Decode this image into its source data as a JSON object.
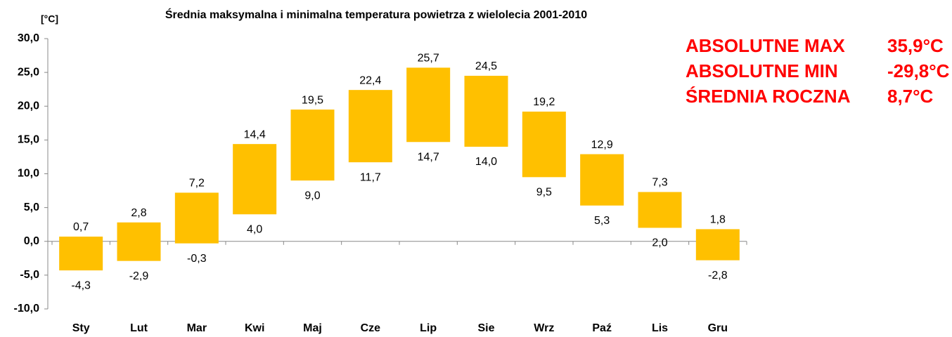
{
  "chart_data": {
    "type": "range-bar",
    "title": "Średnia maksymalna i minimalna temperatura powietrza z wielolecia 2001-2010",
    "y_label": "[°C]",
    "categories": [
      "Sty",
      "Lut",
      "Mar",
      "Kwi",
      "Maj",
      "Cze",
      "Lip",
      "Sie",
      "Wrz",
      "Paź",
      "Lis",
      "Gru"
    ],
    "series": [
      {
        "name": "max",
        "color": "#ffc000",
        "values": [
          0.7,
          2.8,
          7.2,
          14.4,
          19.5,
          22.4,
          25.7,
          24.5,
          19.2,
          12.9,
          7.3,
          1.8
        ],
        "value_labels": [
          "0,7",
          "2,8",
          "7,2",
          "14,4",
          "19,5",
          "22,4",
          "25,7",
          "24,5",
          "19,2",
          "12,9",
          "7,3",
          "1,8"
        ]
      },
      {
        "name": "min",
        "color": "#ffc000",
        "values": [
          -4.3,
          -2.9,
          -0.3,
          4.0,
          9.0,
          11.7,
          14.7,
          14.0,
          9.5,
          5.3,
          2.0,
          -2.8
        ],
        "value_labels": [
          "-4,3",
          "-2,9",
          "-0,3",
          "4,0",
          "9,0",
          "11,7",
          "14,7",
          "14,0",
          "9,5",
          "5,3",
          "2,0",
          "-2,8"
        ]
      }
    ],
    "ylim": [
      -10,
      30
    ],
    "yticks": [
      {
        "value": -10,
        "label": "-10,0"
      },
      {
        "value": -5,
        "label": "-5,0"
      },
      {
        "value": 0,
        "label": "0,0"
      },
      {
        "value": 5,
        "label": "5,0"
      },
      {
        "value": 10,
        "label": "10,0"
      },
      {
        "value": 15,
        "label": "15,0"
      },
      {
        "value": 20,
        "label": "20,0"
      },
      {
        "value": 25,
        "label": "25,0"
      },
      {
        "value": 30,
        "label": "30,0"
      }
    ],
    "annotations": [
      {
        "text": "ABSOLUTNE MAX",
        "value": "35,9°C"
      },
      {
        "text": "ABSOLUTNE MIN",
        "value": "-29,8°C"
      },
      {
        "text": "ŚREDNIA ROCZNA",
        "value": "8,7°C"
      }
    ]
  }
}
